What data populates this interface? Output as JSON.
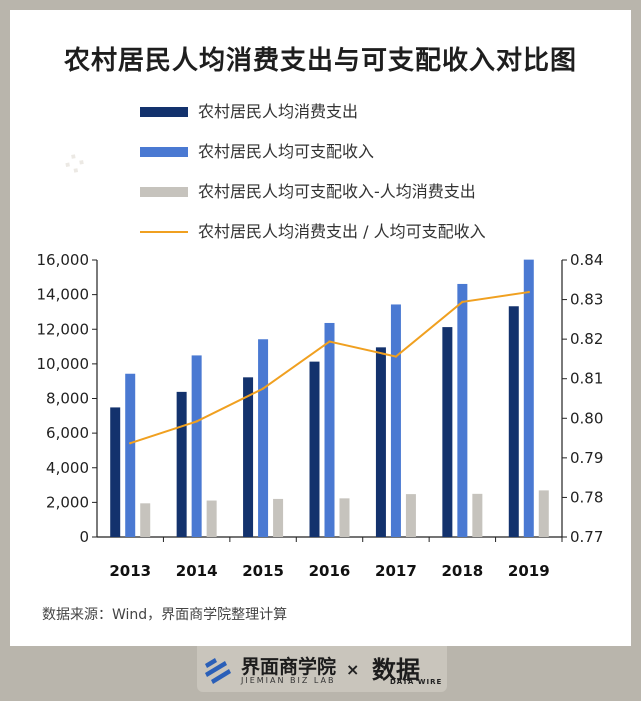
{
  "title": "农村居民人均消费支出与可支配收入对比图",
  "source": "数据来源：Wind，界面商学院整理计算",
  "brand_left": {
    "cn": "界面商学院",
    "en": "JIEMIAN BIZ LAB"
  },
  "brand_sep": "×",
  "brand_right": {
    "cn": "数据",
    "en": "DATA WIRE"
  },
  "colors": {
    "consumption": "#13326d",
    "income": "#4a79d2",
    "gap": "#c6c3bd",
    "ratio": "#f0a020"
  },
  "chart_data": {
    "type": "bar",
    "categories": [
      "2013",
      "2014",
      "2015",
      "2016",
      "2017",
      "2018",
      "2019"
    ],
    "series": [
      {
        "name": "农村居民人均消费支出",
        "type": "bar",
        "axis": "left",
        "values": [
          7485,
          8383,
          9223,
          10130,
          10955,
          12124,
          13328
        ]
      },
      {
        "name": "农村居民人均可支配收入",
        "type": "bar",
        "axis": "left",
        "values": [
          9430,
          10489,
          11422,
          12363,
          13432,
          14617,
          16021
        ]
      },
      {
        "name": "农村居民人均可支配收入-人均消费支出",
        "type": "bar",
        "axis": "left",
        "values": [
          1945,
          2106,
          2199,
          2233,
          2477,
          2493,
          2693
        ]
      },
      {
        "name": "农村居民人均消费支出 / 人均可支配收入",
        "type": "line",
        "axis": "right",
        "values": [
          0.7937,
          0.7992,
          0.8075,
          0.8194,
          0.8156,
          0.8294,
          0.8319
        ]
      }
    ],
    "yleft": {
      "min": 0,
      "max": 16000,
      "step": 2000,
      "ticks": [
        "0",
        "2,000",
        "4,000",
        "6,000",
        "8,000",
        "10,000",
        "12,000",
        "14,000",
        "16,000"
      ]
    },
    "yright": {
      "min": 0.77,
      "max": 0.84,
      "step": 0.01,
      "ticks": [
        "0.77",
        "0.78",
        "0.79",
        "0.80",
        "0.81",
        "0.82",
        "0.83",
        "0.84"
      ]
    },
    "legend_position": "top-left",
    "grid": false
  }
}
